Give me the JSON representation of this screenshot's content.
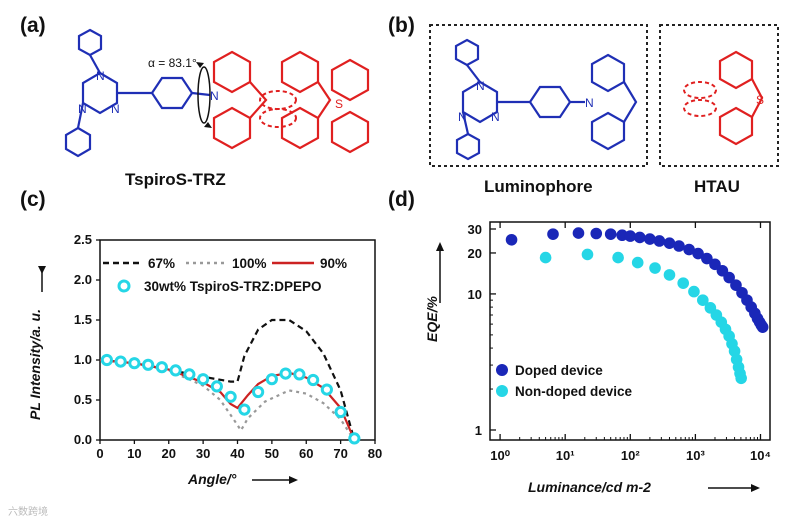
{
  "panels": {
    "a": "(a)",
    "b": "(b)",
    "c": "(c)",
    "d": "(d)"
  },
  "molecule_a": {
    "name": "TspiroS-TRZ",
    "angle_label": "α = 83.1°",
    "atoms": [
      "N",
      "N",
      "N",
      "N",
      "S"
    ]
  },
  "molecule_b": {
    "luminophore": "Luminophore",
    "htau": "HTAU",
    "atoms": [
      "N",
      "N",
      "N",
      "N",
      "S"
    ]
  },
  "colors": {
    "blue": "#1f2fb5",
    "red": "#e02020",
    "cyan": "#25d6e6",
    "navy": "#1a27b8"
  },
  "watermark": "六数跨境",
  "chart_data": [
    {
      "id": "c",
      "type": "line",
      "title": "",
      "xlabel": "Angle/°",
      "ylabel": "PL Intensity/a. u.",
      "xlim": [
        0,
        80
      ],
      "ylim": [
        0.0,
        2.5
      ],
      "xticks": [
        "0",
        "10",
        "20",
        "30",
        "40",
        "50",
        "60",
        "70",
        "80"
      ],
      "yticks": [
        "0.0",
        "0.5",
        "1.0",
        "1.5",
        "2.0",
        "2.5"
      ],
      "series": [
        {
          "name": "67%",
          "style": "dash",
          "color": "#111111",
          "x": [
            0,
            10,
            20,
            30,
            38,
            40,
            42,
            46,
            50,
            55,
            60,
            65,
            70,
            73,
            74
          ],
          "y": [
            1.0,
            0.96,
            0.88,
            0.79,
            0.73,
            0.73,
            1.05,
            1.38,
            1.5,
            1.5,
            1.36,
            1.08,
            0.62,
            0.15,
            0.0
          ]
        },
        {
          "name": "100%",
          "style": "dot",
          "color": "#999999",
          "x": [
            0,
            10,
            20,
            30,
            35,
            39,
            41,
            43,
            48,
            55,
            60,
            65,
            70,
            73,
            74
          ],
          "y": [
            1.0,
            0.96,
            0.87,
            0.68,
            0.5,
            0.25,
            0.12,
            0.27,
            0.48,
            0.62,
            0.58,
            0.46,
            0.26,
            0.06,
            0.0
          ]
        },
        {
          "name": "90%",
          "style": "solid",
          "color": "#cc2222",
          "x": [
            0,
            10,
            20,
            30,
            35,
            38,
            40,
            43,
            46,
            50,
            55,
            60,
            65,
            70,
            73,
            74
          ],
          "y": [
            1.0,
            0.96,
            0.88,
            0.72,
            0.6,
            0.45,
            0.4,
            0.56,
            0.7,
            0.8,
            0.84,
            0.78,
            0.65,
            0.4,
            0.1,
            0.0
          ]
        },
        {
          "name": "30wt% TspiroS-TRZ:DPEPO",
          "style": "marker",
          "color": "#25d6e6",
          "x": [
            2,
            6,
            10,
            14,
            18,
            22,
            26,
            30,
            34,
            38,
            42,
            46,
            50,
            54,
            58,
            62,
            66,
            70,
            74
          ],
          "y": [
            1.0,
            0.98,
            0.96,
            0.94,
            0.91,
            0.87,
            0.82,
            0.76,
            0.67,
            0.54,
            0.38,
            0.6,
            0.76,
            0.83,
            0.82,
            0.75,
            0.63,
            0.35,
            0.02
          ]
        }
      ],
      "legend": [
        "67%",
        "100%",
        "90%",
        "30wt% TspiroS-TRZ:DPEPO"
      ]
    },
    {
      "id": "d",
      "type": "scatter",
      "title": "",
      "xlabel": "Luminance/cd m-2",
      "ylabel": "EQE/%",
      "xscale": "log",
      "yscale": "log",
      "xlim": [
        1,
        10000
      ],
      "ylim": [
        1,
        40
      ],
      "xticks": [
        "10⁰",
        "10¹",
        "10²",
        "10³",
        "10⁴"
      ],
      "yticks": [
        "1",
        "10",
        "20",
        "30"
      ],
      "series": [
        {
          "name": "Doped device",
          "color": "#1a27b8",
          "x": [
            1.5,
            6.5,
            16,
            30,
            50,
            75,
            100,
            140,
            200,
            280,
            400,
            560,
            800,
            1100,
            1500,
            2000,
            2600,
            3300,
            4200,
            5200,
            6200,
            7200,
            8200,
            9000,
            9700,
            10300,
            10800
          ],
          "y": [
            25,
            27.5,
            28,
            27.8,
            27.5,
            27,
            26.6,
            26,
            25.3,
            24.5,
            23.6,
            22.5,
            21.2,
            19.8,
            18.2,
            16.5,
            14.8,
            13.2,
            11.6,
            10.2,
            9.0,
            8.0,
            7.2,
            6.6,
            6.2,
            5.9,
            5.7
          ]
        },
        {
          "name": "Non-doped device",
          "color": "#25d6e6",
          "x": [
            5,
            22,
            65,
            130,
            240,
            400,
            650,
            950,
            1300,
            1700,
            2100,
            2500,
            2900,
            3300,
            3650,
            4000,
            4300,
            4600,
            4850,
            5050
          ],
          "y": [
            18.5,
            19.5,
            18.5,
            17,
            15.5,
            13.8,
            12,
            10.4,
            9,
            7.9,
            7.0,
            6.2,
            5.5,
            4.9,
            4.3,
            3.8,
            3.3,
            2.9,
            2.6,
            2.4
          ]
        }
      ],
      "legend": [
        "Doped device",
        "Non-doped device"
      ]
    }
  ]
}
